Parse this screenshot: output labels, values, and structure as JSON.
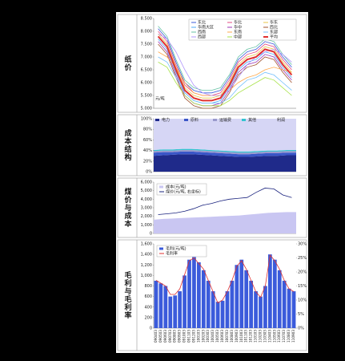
{
  "chart_data": [
    {
      "type": "line",
      "side_label": "纸价",
      "y_label": "元/吨",
      "ylim": [
        5.0,
        8.5
      ],
      "yticks": [
        {
          "value": 5.0,
          "label": "5.000"
        },
        {
          "value": 5.5,
          "label": "5.500"
        },
        {
          "value": 6.0,
          "label": "6.000"
        },
        {
          "value": 6.5,
          "label": "6.500"
        },
        {
          "value": 7.0,
          "label": "7.000"
        },
        {
          "value": 7.5,
          "label": "7.500"
        },
        {
          "value": 8.0,
          "label": "8.000"
        },
        {
          "value": 8.5,
          "label": "8.500"
        }
      ],
      "series": [
        {
          "name": "东北",
          "color": "#3b5bdb",
          "values": [
            8.1,
            7.7,
            6.8,
            6.0,
            5.7,
            5.6,
            5.6,
            5.7,
            6.2,
            6.9,
            7.2,
            7.3,
            7.6,
            7.5,
            7.0,
            6.6
          ]
        },
        {
          "name": "华北",
          "color": "#e64980",
          "values": [
            8.0,
            7.6,
            6.7,
            5.9,
            5.6,
            5.5,
            5.5,
            5.6,
            6.1,
            6.8,
            7.1,
            7.2,
            7.5,
            7.4,
            6.9,
            6.5
          ]
        },
        {
          "name": "华东",
          "color": "#e8c547",
          "values": [
            7.9,
            7.5,
            6.6,
            5.8,
            5.5,
            5.4,
            5.4,
            5.5,
            6.0,
            6.7,
            7.0,
            7.1,
            7.4,
            7.3,
            6.8,
            6.4
          ]
        },
        {
          "name": "华南大区",
          "color": "#4dabf7",
          "values": [
            7.7,
            7.3,
            6.4,
            5.6,
            5.3,
            5.2,
            5.2,
            5.3,
            5.8,
            6.5,
            6.8,
            6.9,
            7.2,
            7.1,
            6.6,
            6.2
          ]
        },
        {
          "name": "华中",
          "color": "#9c36b5",
          "values": [
            7.6,
            7.2,
            6.3,
            5.5,
            5.2,
            5.1,
            5.1,
            5.2,
            5.7,
            6.4,
            6.7,
            6.8,
            7.1,
            7.0,
            6.5,
            6.1
          ]
        },
        {
          "name": "西北",
          "color": "#a0522d",
          "values": [
            7.5,
            7.1,
            6.2,
            5.4,
            5.1,
            5.0,
            5.0,
            5.1,
            5.6,
            6.3,
            6.6,
            6.7,
            7.0,
            6.9,
            6.4,
            6.0
          ]
        },
        {
          "name": "西南",
          "color": "#66c2a5",
          "values": [
            8.2,
            7.8,
            6.9,
            6.1,
            5.8,
            5.7,
            5.7,
            5.8,
            6.3,
            7.0,
            7.3,
            7.4,
            7.7,
            7.6,
            7.1,
            6.7
          ]
        },
        {
          "name": "东南",
          "color": "#ffa94d",
          "values": [
            7.2,
            7.0,
            6.6,
            6.0,
            5.6,
            5.5,
            5.5,
            5.5,
            5.7,
            6.0,
            6.2,
            6.3,
            6.5,
            6.6,
            6.5,
            6.4
          ]
        },
        {
          "name": "东部",
          "color": "#74c0fc",
          "values": [
            7.0,
            6.8,
            6.2,
            5.6,
            5.3,
            5.2,
            5.2,
            5.2,
            5.4,
            5.8,
            6.1,
            6.2,
            6.4,
            6.3,
            6.0,
            5.7
          ]
        },
        {
          "name": "西部",
          "color": "#b197fc",
          "values": [
            7.9,
            7.7,
            7.2,
            6.5,
            5.9,
            5.6,
            5.5,
            5.5,
            5.7,
            6.2,
            6.7,
            7.0,
            7.2,
            7.3,
            7.1,
            6.8
          ]
        },
        {
          "name": "中部",
          "color": "#a9e34b",
          "values": [
            6.8,
            6.6,
            6.0,
            5.5,
            5.2,
            5.1,
            5.1,
            5.1,
            5.3,
            5.6,
            5.8,
            6.0,
            6.2,
            6.1,
            5.8,
            5.5
          ]
        },
        {
          "name": "平均",
          "color": "#e03131",
          "width": 2,
          "values": [
            7.8,
            7.4,
            6.5,
            5.7,
            5.4,
            5.3,
            5.3,
            5.4,
            5.9,
            6.6,
            6.9,
            7.0,
            7.3,
            7.2,
            6.7,
            6.3
          ]
        }
      ]
    },
    {
      "type": "area",
      "side_label": "成本结构",
      "ylim": [
        0,
        100
      ],
      "yticks": [
        {
          "value": 0,
          "label": "0%"
        },
        {
          "value": 20,
          "label": "20%"
        },
        {
          "value": 40,
          "label": "40%"
        },
        {
          "value": 60,
          "label": "60%"
        },
        {
          "value": 80,
          "label": "80%"
        },
        {
          "value": 100,
          "label": "100%"
        }
      ],
      "series": [
        {
          "name": "电力",
          "color": "#1f2a8a",
          "values": [
            30,
            31,
            32,
            33,
            33,
            32,
            31,
            30,
            29,
            28,
            28,
            29,
            30,
            30,
            31,
            31
          ]
        },
        {
          "name": "原料",
          "color": "#3a56c8",
          "values": [
            6,
            6,
            5,
            5,
            5,
            5,
            5,
            5,
            5,
            5,
            5,
            5,
            5,
            5,
            5,
            5
          ]
        },
        {
          "name": "运输费",
          "color": "#9999cc",
          "values": [
            3,
            3,
            3,
            3,
            3,
            3,
            3,
            3,
            3,
            3,
            3,
            3,
            3,
            3,
            3,
            3
          ]
        },
        {
          "name": "其他",
          "color": "#33c4d0",
          "values": [
            2,
            2,
            2,
            2,
            2,
            2,
            2,
            2,
            2,
            2,
            2,
            2,
            2,
            2,
            2,
            2
          ]
        },
        {
          "name": "利润",
          "color": "#d6d6f5",
          "values": [
            59,
            58,
            58,
            57,
            57,
            58,
            59,
            60,
            61,
            62,
            62,
            61,
            60,
            60,
            59,
            59
          ]
        }
      ]
    },
    {
      "type": "combo",
      "side_label": "煤价与成本",
      "ylim": [
        0,
        6000
      ],
      "yticks": [
        0,
        {
          "value": 1000,
          "label": "1,000"
        },
        {
          "value": 2000,
          "label": "2,000"
        },
        {
          "value": 3000,
          "label": "3,000"
        },
        {
          "value": 4000,
          "label": "4,000"
        },
        {
          "value": 5000,
          "label": "5,000"
        },
        {
          "value": 6000,
          "label": "6,000"
        }
      ],
      "series": [
        {
          "name": "成本(元/吨)",
          "color": "#c9c6f2",
          "style": "area",
          "values": [
            1600,
            1700,
            1750,
            1800,
            1850,
            1900,
            1950,
            2000,
            2050,
            2100,
            2200,
            2300,
            2400,
            2450,
            2500,
            2500
          ]
        },
        {
          "name": "煤价(元/吨, 右坐标)",
          "color": "#1a237e",
          "style": "line",
          "values": [
            2200,
            2300,
            2400,
            2600,
            2900,
            3300,
            3500,
            3800,
            4000,
            4100,
            4200,
            4800,
            5300,
            5200,
            4500,
            4200
          ]
        }
      ]
    },
    {
      "type": "combo",
      "side_label": "毛利与毛利率",
      "categories": [
        "090403",
        "090503",
        "090603",
        "090703",
        "090803",
        "090903",
        "091003",
        "091103",
        "091203",
        "100103",
        "100203",
        "100303",
        "100403",
        "100503",
        "100603",
        "100703",
        "100803",
        "100903",
        "101003",
        "101103",
        "101203",
        "110103",
        "110203",
        "110303",
        "110403",
        "110503",
        "110603",
        "110703",
        "110803",
        "110903"
      ],
      "ylim": [
        0,
        1600
      ],
      "yticks": [
        0,
        200,
        400,
        600,
        800,
        {
          "value": 1000,
          "label": "1,000"
        },
        {
          "value": 1200,
          "label": "1,200"
        },
        {
          "value": 1400,
          "label": "1,400"
        },
        {
          "value": 1600,
          "label": "1,600"
        }
      ],
      "y2lim": [
        0,
        30
      ],
      "y2ticks": [
        {
          "value": 0,
          "label": "0%"
        },
        {
          "value": 5,
          "label": "5%"
        },
        {
          "value": 10,
          "label": "10%"
        },
        {
          "value": 15,
          "label": "15%"
        },
        {
          "value": 20,
          "label": "20%"
        },
        {
          "value": 25,
          "label": "25%"
        },
        {
          "value": 30,
          "label": "30%"
        }
      ],
      "series": [
        {
          "name": "毛利(元/吨)",
          "color": "#3b5bdb",
          "style": "bar",
          "values": [
            900,
            850,
            800,
            600,
            620,
            700,
            1000,
            1300,
            1350,
            1250,
            1100,
            900,
            700,
            500,
            520,
            700,
            900,
            1200,
            1300,
            1100,
            900,
            700,
            600,
            800,
            1400,
            1300,
            1100,
            900,
            750,
            700
          ]
        },
        {
          "name": "毛利率",
          "color": "#e03131",
          "style": "line",
          "axis": "y2",
          "values": [
            17,
            16,
            15,
            12,
            12,
            14,
            19,
            24,
            25,
            23,
            21,
            17,
            13,
            9,
            10,
            13,
            17,
            22,
            24,
            21,
            17,
            13,
            11,
            15,
            26,
            24,
            21,
            17,
            14,
            13
          ]
        }
      ]
    }
  ]
}
